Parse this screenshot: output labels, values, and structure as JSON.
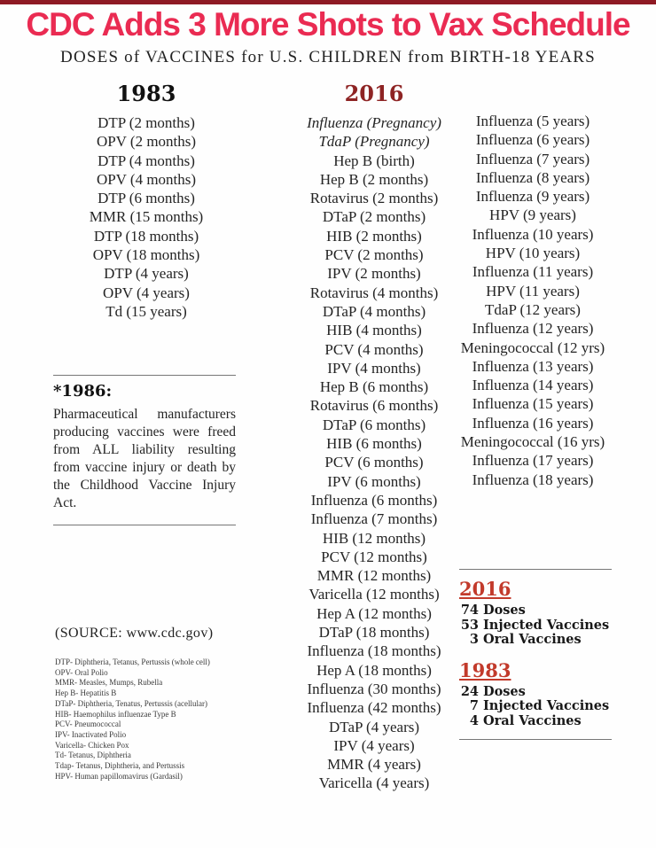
{
  "page": {
    "title": "CDC Adds 3 More Shots to Vax Schedule",
    "subtitle": "DOSES of VACCINES for U.S. CHILDREN from BIRTH-18 YEARS"
  },
  "colors": {
    "title_red": "#ea2b52",
    "top_bar": "#8e1a24",
    "heading_2016": "#8e2424",
    "summary_red": "#c23a2b"
  },
  "schedule_1983": {
    "heading": "1983",
    "items": [
      "DTP (2 months)",
      "OPV (2 months)",
      "DTP (4 months)",
      "OPV (4 months)",
      "DTP (6 months)",
      "MMR (15 months)",
      "DTP (18 months)",
      "OPV (18 months)",
      "DTP (4 years)",
      "OPV (4 years)",
      "Td (15 years)"
    ]
  },
  "schedule_2016": {
    "heading": "2016",
    "column_1": [
      {
        "text": "Influenza (Pregnancy)",
        "em": true
      },
      {
        "text": "TdaP (Pregnancy)",
        "em": true
      },
      "Hep B (birth)",
      "Hep B (2 months)",
      "Rotavirus (2 months)",
      "DTaP (2 months)",
      "HIB (2 months)",
      "PCV (2 months)",
      "IPV (2 months)",
      "Rotavirus (4 months)",
      "DTaP (4 months)",
      "HIB (4 months)",
      "PCV (4 months)",
      "IPV (4 months)",
      "Hep B (6 months)",
      "Rotavirus (6 months)",
      "DTaP (6 months)",
      "HIB (6 months)",
      "PCV (6 months)",
      "IPV (6 months)",
      "Influenza (6 months)",
      "Influenza (7 months)",
      "HIB (12 months)",
      "PCV (12 months)",
      "MMR (12 months)",
      "Varicella (12 months)",
      "Hep A (12 months)",
      "DTaP (18 months)",
      "Influenza (18 months)",
      "Hep A (18 months)",
      "Influenza (30 months)",
      "Influenza (42 months)",
      "DTaP (4 years)",
      "IPV (4 years)",
      "MMR (4 years)",
      "Varicella (4 years)"
    ],
    "column_2": [
      "Influenza (5 years)",
      "Influenza (6 years)",
      "Influenza (7 years)",
      "Influenza (8 years)",
      "Influenza (9 years)",
      "HPV (9 years)",
      "Influenza (10 years)",
      "HPV (10 years)",
      "Influenza (11 years)",
      "HPV (11 years)",
      "TdaP (12 years)",
      "Influenza (12 years)",
      "Meningococcal (12 yrs)",
      "Influenza (13 years)",
      "Influenza (14 years)",
      "Influenza (15 years)",
      "Influenza (16 years)",
      "Meningococcal (16 yrs)",
      "Influenza (17 years)",
      "Influenza (18 years)"
    ]
  },
  "note_1986": {
    "heading": "*1986:",
    "body": "Pharmaceutical manufacturers producing vaccines were freed from ALL liability resulting from vaccine injury or death by the Childhood Vaccine Injury Act."
  },
  "source": {
    "label": "(SOURCE: www.cdc.gov)",
    "abbreviations": [
      "DTP- Diphtheria, Tetanus, Pertussis (whole cell)",
      "OPV- Oral Polio",
      "MMR- Measles, Mumps, Rubella",
      "Hep B- Hepatitis B",
      "DTaP- Diphtheria, Tenatus, Pertussis (acellular)",
      "HIB- Haemophilus influenzae Type B",
      "PCV- Pneumococcal",
      "IPV- Inactivated Polio",
      "Varicella- Chicken Pox",
      "Td- Tetanus, Diphtheria",
      "Tdap- Tetanus, Diphtheria, and Pertussis",
      "HPV- Human papillomavirus (Gardasil)"
    ]
  },
  "summary": {
    "blocks": [
      {
        "year": "2016",
        "stats": [
          {
            "num": "74",
            "label": "Doses"
          },
          {
            "num": "53",
            "label": "Injected Vaccines"
          },
          {
            "num": "3",
            "label": "Oral Vaccines"
          }
        ]
      },
      {
        "year": "1983",
        "stats": [
          {
            "num": "24",
            "label": "Doses"
          },
          {
            "num": "7",
            "label": "Injected Vaccines"
          },
          {
            "num": "4",
            "label": "Oral Vaccines"
          }
        ]
      }
    ]
  }
}
